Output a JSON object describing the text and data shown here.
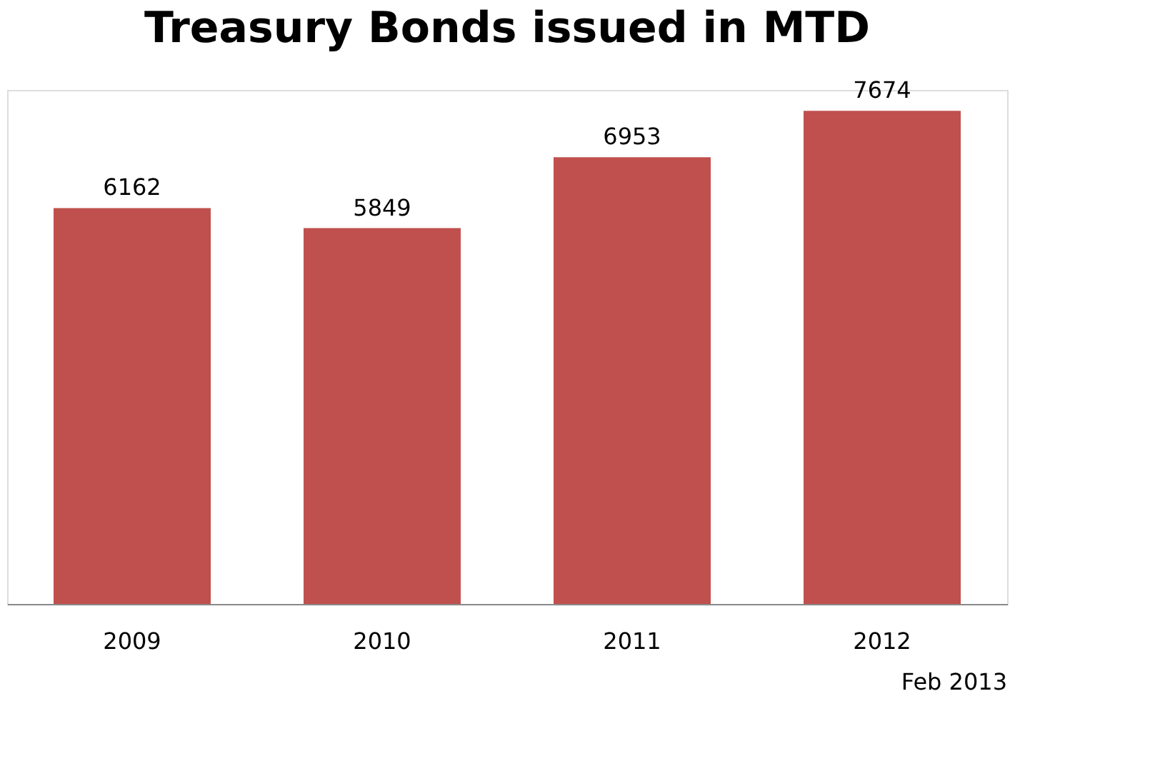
{
  "chart_data": {
    "type": "bar",
    "title": "Treasury Bonds issued in MTD",
    "categories": [
      "2009",
      "2010",
      "2011",
      "2012"
    ],
    "values": [
      6162,
      5849,
      6953,
      7674
    ],
    "color": "#c0504d",
    "data_labels": true,
    "annotations": [
      "Feb 2013"
    ]
  }
}
